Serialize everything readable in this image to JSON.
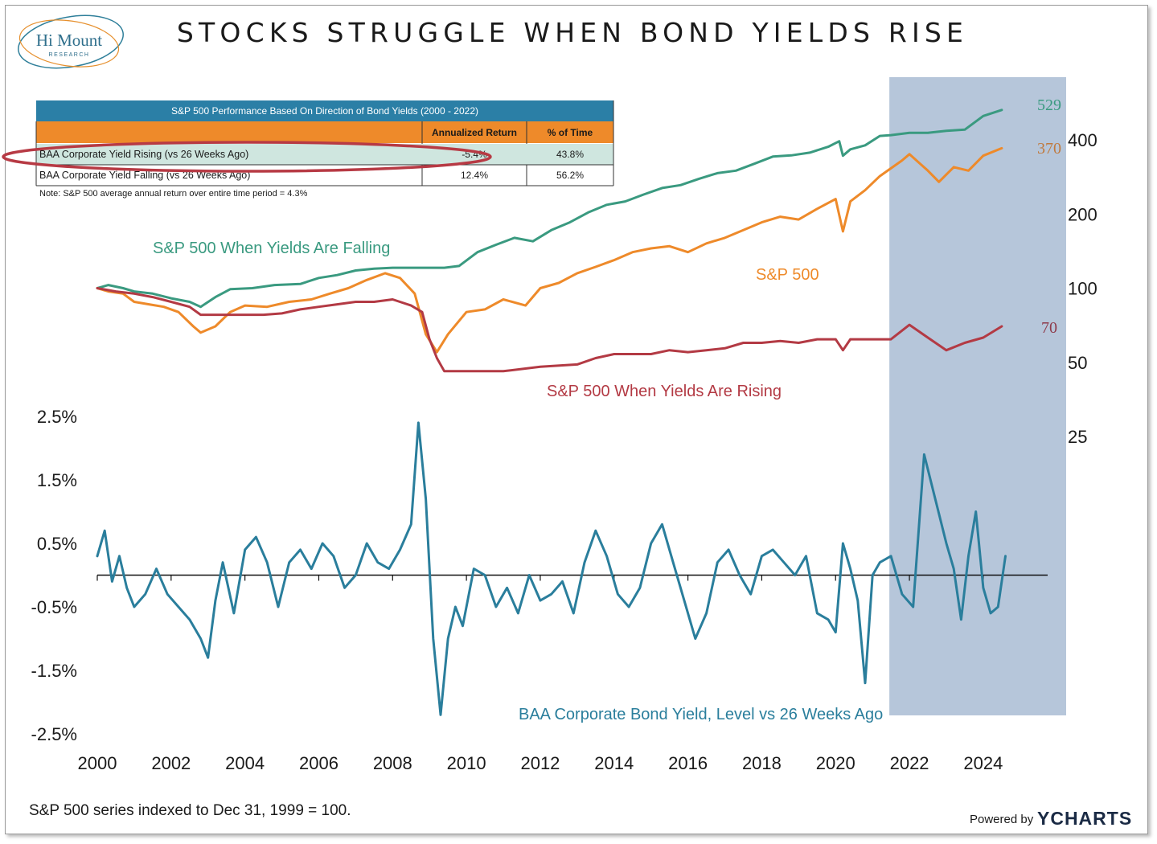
{
  "logo": {
    "name": "Hi Mount",
    "sub": "RESEARCH"
  },
  "title": "STOCKS STRUGGLE WHEN BOND YIELDS RISE",
  "table": {
    "header": "S&P 500 Performance Based On Direction of Bond Yields (2000 - 2022)",
    "columns": [
      "Annualized Return",
      "% of Time"
    ],
    "rows": [
      {
        "label": "BAA Corporate Yield Rising (vs 26 Weeks Ago)",
        "return": "-5.4%",
        "time": "43.8%"
      },
      {
        "label": "BAA Corporate Yield Falling (vs 26 Weeks Ago)",
        "return": "12.4%",
        "time": "56.2%"
      }
    ],
    "note": "Note: S&P 500 average annual return over entire time period = 4.3%"
  },
  "labels": {
    "falling": "S&P 500 When Yields Are Falling",
    "sp500": "S&P 500",
    "rising": "S&P 500 When Yields Are Rising",
    "baa": "BAA Corporate Bond Yield, Level vs 26 Weeks Ago",
    "end_falling": "529",
    "end_sp500": "370",
    "end_rising": "70"
  },
  "footnote": "S&P 500 series indexed to Dec 31, 1999 = 100.",
  "branding": {
    "powered": "Powered by",
    "brand": "YCHARTS"
  },
  "colors": {
    "falling": "#3a9a80",
    "sp500": "#ee8a2a",
    "rising": "#b33a44",
    "baa": "#2a7e9c",
    "highlight": "#a9bcd3",
    "table_header": "#2b7fa6",
    "table_orange": "#ee8a2a",
    "row_highlight": "#cfe6df",
    "ellipse": "#b73a44"
  },
  "chart_data": {
    "type": "line",
    "x_range": [
      2000,
      2025.2
    ],
    "x_ticks": [
      "2000",
      "2002",
      "2004",
      "2006",
      "2008",
      "2010",
      "2012",
      "2014",
      "2016",
      "2018",
      "2020",
      "2022",
      "2024"
    ],
    "shaded_period": [
      2021.5,
      2025.5
    ],
    "top_panel": {
      "scale": "log",
      "ylim": [
        25,
        529
      ],
      "y_ticks": [
        "400",
        "200",
        "100",
        "50",
        "25"
      ],
      "series": [
        {
          "name": "S&P 500 When Yields Are Falling",
          "key": "falling",
          "x": [
            2000.0,
            2000.3,
            2000.7,
            2001.0,
            2001.5,
            2002.0,
            2002.5,
            2002.8,
            2003.2,
            2003.6,
            2004.2,
            2004.8,
            2005.5,
            2006.0,
            2006.5,
            2007.0,
            2007.5,
            2008.0,
            2008.5,
            2009.0,
            2009.4,
            2009.8,
            2010.3,
            2010.8,
            2011.3,
            2011.8,
            2012.3,
            2012.8,
            2013.3,
            2013.8,
            2014.3,
            2014.8,
            2015.3,
            2015.8,
            2016.3,
            2016.8,
            2017.3,
            2017.8,
            2018.3,
            2018.8,
            2019.3,
            2019.8,
            2020.1,
            2020.2,
            2020.4,
            2020.8,
            2021.2,
            2021.5,
            2022.0,
            2022.5,
            2023.0,
            2023.5,
            2024.0,
            2024.5
          ],
          "values": [
            100,
            103,
            100,
            97,
            95,
            91,
            88,
            84,
            92,
            99,
            100,
            103,
            104,
            110,
            113,
            118,
            120,
            121,
            121,
            121,
            121,
            123,
            140,
            150,
            160,
            155,
            172,
            185,
            203,
            218,
            225,
            240,
            255,
            262,
            278,
            293,
            300,
            320,
            342,
            346,
            355,
            375,
            395,
            345,
            366,
            380,
            415,
            418,
            427,
            427,
            435,
            440,
            500,
            529
          ]
        },
        {
          "name": "S&P 500",
          "key": "sp500",
          "x": [
            2000.0,
            2000.3,
            2000.7,
            2001.0,
            2001.4,
            2001.8,
            2002.2,
            2002.6,
            2002.8,
            2003.2,
            2003.6,
            2004.0,
            2004.6,
            2005.2,
            2005.8,
            2006.3,
            2006.8,
            2007.3,
            2007.8,
            2008.2,
            2008.6,
            2008.9,
            2009.2,
            2009.5,
            2010.0,
            2010.5,
            2011.0,
            2011.6,
            2012.0,
            2012.5,
            2013.0,
            2013.5,
            2014.0,
            2014.5,
            2015.0,
            2015.5,
            2016.0,
            2016.5,
            2017.0,
            2017.5,
            2018.0,
            2018.5,
            2019.0,
            2019.5,
            2020.0,
            2020.2,
            2020.4,
            2020.8,
            2021.2,
            2021.8,
            2022.0,
            2022.5,
            2022.8,
            2023.2,
            2023.6,
            2024.0,
            2024.5
          ],
          "values": [
            100,
            97,
            95,
            88,
            86,
            84,
            80,
            70,
            66,
            70,
            80,
            85,
            84,
            88,
            90,
            95,
            100,
            108,
            115,
            110,
            95,
            65,
            55,
            65,
            80,
            82,
            90,
            85,
            100,
            105,
            115,
            122,
            130,
            140,
            145,
            148,
            140,
            152,
            160,
            172,
            185,
            195,
            190,
            210,
            230,
            170,
            225,
            250,
            285,
            330,
            350,
            300,
            270,
            310,
            300,
            345,
            370
          ]
        },
        {
          "name": "S&P 500 When Yields Are Rising",
          "key": "rising",
          "x": [
            2000.0,
            2000.5,
            2001.0,
            2001.5,
            2002.0,
            2002.5,
            2002.8,
            2003.5,
            2004.0,
            2004.5,
            2005.0,
            2005.5,
            2006.0,
            2006.5,
            2007.0,
            2007.5,
            2008.0,
            2008.5,
            2008.8,
            2009.0,
            2009.2,
            2009.4,
            2010.0,
            2010.5,
            2011.0,
            2012.0,
            2013.0,
            2013.5,
            2014.0,
            2015.0,
            2015.5,
            2016.0,
            2016.5,
            2017.0,
            2017.5,
            2018.0,
            2018.5,
            2019.0,
            2019.5,
            2020.0,
            2020.2,
            2020.4,
            2021.0,
            2021.5,
            2022.0,
            2022.5,
            2023.0,
            2023.5,
            2024.0,
            2024.5
          ],
          "values": [
            100,
            97,
            95,
            92,
            88,
            84,
            78,
            78,
            78,
            78,
            79,
            82,
            84,
            86,
            88,
            88,
            90,
            85,
            80,
            62,
            52,
            46,
            46,
            46,
            46,
            48,
            49,
            52,
            54,
            54,
            56,
            55,
            56,
            57,
            60,
            60,
            61,
            60,
            62,
            62,
            56,
            62,
            62,
            62,
            71,
            63,
            56,
            60,
            63,
            70
          ]
        }
      ]
    },
    "bottom_panel": {
      "ylim": [
        -2.5,
        2.5
      ],
      "y_ticks": [
        "2.5%",
        "1.5%",
        "0.5%",
        "-0.5%",
        "-1.5%",
        "-2.5%"
      ],
      "series": {
        "name": "BAA Corporate Bond Yield, Level vs 26 Weeks Ago",
        "key": "baa",
        "x": [
          2000.0,
          2000.2,
          2000.4,
          2000.6,
          2000.8,
          2001.0,
          2001.3,
          2001.6,
          2001.9,
          2002.2,
          2002.5,
          2002.8,
          2003.0,
          2003.2,
          2003.4,
          2003.7,
          2004.0,
          2004.3,
          2004.6,
          2004.9,
          2005.2,
          2005.5,
          2005.8,
          2006.1,
          2006.4,
          2006.7,
          2007.0,
          2007.3,
          2007.6,
          2007.9,
          2008.2,
          2008.5,
          2008.7,
          2008.9,
          2009.1,
          2009.3,
          2009.5,
          2009.7,
          2009.9,
          2010.2,
          2010.5,
          2010.8,
          2011.1,
          2011.4,
          2011.7,
          2012.0,
          2012.3,
          2012.6,
          2012.9,
          2013.2,
          2013.5,
          2013.8,
          2014.1,
          2014.4,
          2014.7,
          2015.0,
          2015.3,
          2015.6,
          2015.9,
          2016.2,
          2016.5,
          2016.8,
          2017.1,
          2017.4,
          2017.7,
          2018.0,
          2018.3,
          2018.6,
          2018.9,
          2019.2,
          2019.5,
          2019.8,
          2020.0,
          2020.2,
          2020.4,
          2020.6,
          2020.8,
          2021.0,
          2021.2,
          2021.5,
          2021.8,
          2022.1,
          2022.4,
          2022.7,
          2023.0,
          2023.2,
          2023.4,
          2023.6,
          2023.8,
          2024.0,
          2024.2,
          2024.4,
          2024.6
        ],
        "values": [
          0.3,
          0.7,
          -0.1,
          0.3,
          -0.2,
          -0.5,
          -0.3,
          0.1,
          -0.3,
          -0.5,
          -0.7,
          -1.0,
          -1.3,
          -0.4,
          0.2,
          -0.6,
          0.4,
          0.6,
          0.2,
          -0.5,
          0.2,
          0.4,
          0.1,
          0.5,
          0.3,
          -0.2,
          0.0,
          0.5,
          0.2,
          0.1,
          0.4,
          0.8,
          2.4,
          1.2,
          -1.0,
          -2.2,
          -1.0,
          -0.5,
          -0.8,
          0.1,
          0.0,
          -0.5,
          -0.2,
          -0.6,
          0.0,
          -0.4,
          -0.3,
          -0.1,
          -0.6,
          0.2,
          0.7,
          0.3,
          -0.3,
          -0.5,
          -0.2,
          0.5,
          0.8,
          0.2,
          -0.4,
          -1.0,
          -0.6,
          0.2,
          0.4,
          0.0,
          -0.3,
          0.3,
          0.4,
          0.2,
          0.0,
          0.3,
          -0.6,
          -0.7,
          -0.9,
          0.5,
          0.1,
          -0.4,
          -1.7,
          0.0,
          0.2,
          0.3,
          -0.3,
          -0.5,
          1.9,
          1.2,
          0.5,
          0.1,
          -0.7,
          0.3,
          1.0,
          -0.2,
          -0.6,
          -0.5,
          0.3
        ]
      }
    }
  }
}
